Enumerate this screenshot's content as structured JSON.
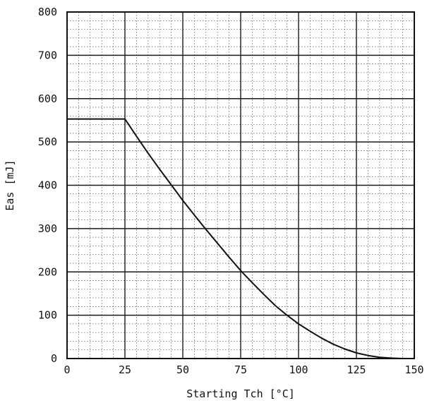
{
  "chart_data": {
    "type": "line",
    "title": "",
    "xlabel": "Starting Tch [°C]",
    "ylabel": "Eas [mJ]",
    "xlim": [
      0,
      150
    ],
    "ylim": [
      0,
      800
    ],
    "x_ticks": [
      0,
      25,
      50,
      75,
      100,
      125,
      150
    ],
    "y_ticks": [
      0,
      100,
      200,
      300,
      400,
      500,
      600,
      700,
      800
    ],
    "x_tick_labels": [
      "0",
      "25",
      "50",
      "75",
      "100",
      "125",
      "150"
    ],
    "y_tick_labels": [
      "0",
      "100",
      "200",
      "300",
      "400",
      "500",
      "600",
      "700",
      "800"
    ],
    "grid": {
      "major": true,
      "minor": true,
      "minor_style": "dotted"
    },
    "series": [
      {
        "x": [
          0,
          25,
          30,
          35,
          40,
          45,
          50,
          55,
          60,
          65,
          70,
          75,
          80,
          85,
          90,
          95,
          100,
          105,
          110,
          115,
          120,
          125,
          130,
          135,
          140,
          145,
          150
        ],
        "y": [
          553,
          553,
          513,
          474,
          437,
          401,
          365,
          331,
          298,
          266,
          234,
          203,
          175,
          148,
          122,
          100,
          80,
          63,
          47,
          33,
          22,
          13,
          7,
          3,
          1,
          0,
          0
        ]
      }
    ],
    "colors": {
      "line": "#111111",
      "grid_major": "#1a1a1a",
      "grid_minor": "#555555"
    }
  }
}
